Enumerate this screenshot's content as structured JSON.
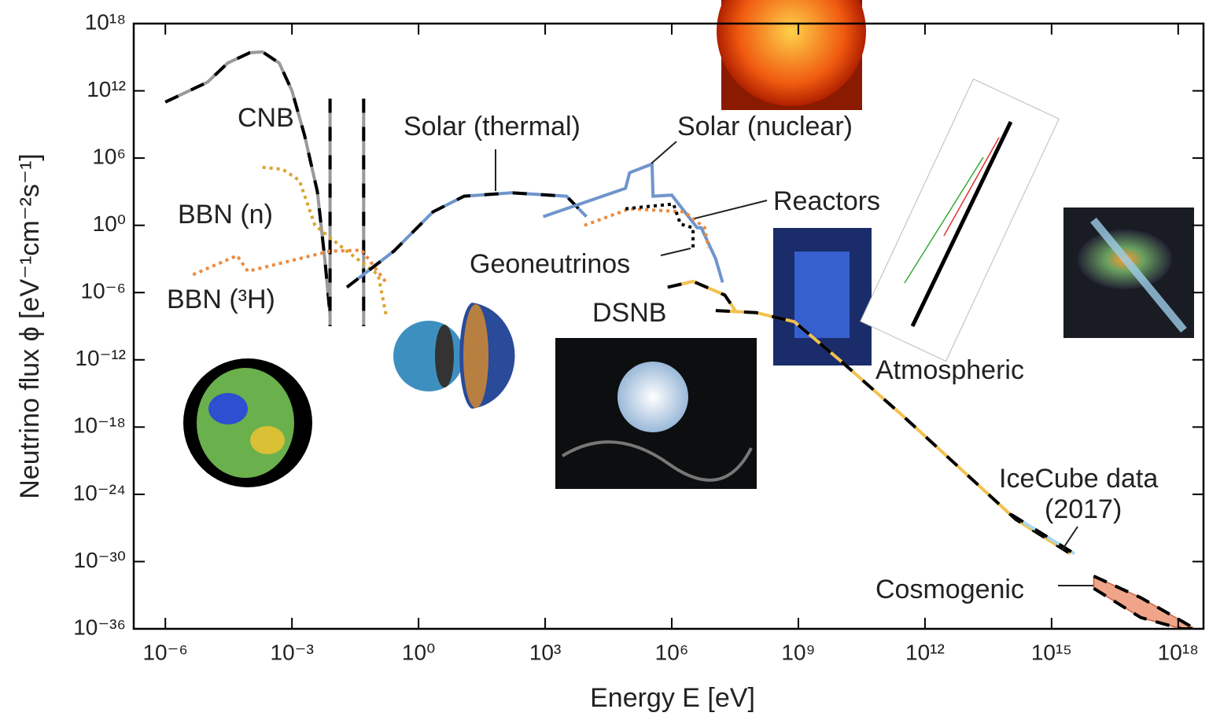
{
  "chart_data": {
    "type": "line",
    "xlabel": "Energy E [eV]",
    "ylabel": "Neutrino flux ϕ [eV⁻¹cm⁻²s⁻¹]",
    "log_x": true,
    "log_y": true,
    "xlim": [
      1.78e-07,
      3.98e+18
    ],
    "ylim": [
      1e-36,
      1e+18
    ],
    "xticks": [
      {
        "value": 1e-06,
        "label": "10⁻⁶"
      },
      {
        "value": 0.001,
        "label": "10⁻³"
      },
      {
        "value": 1,
        "label": "10⁰"
      },
      {
        "value": 1000.0,
        "label": "10³"
      },
      {
        "value": 1000000.0,
        "label": "10⁶"
      },
      {
        "value": 1000000000.0,
        "label": "10⁹"
      },
      {
        "value": 1000000000000.0,
        "label": "10¹²"
      },
      {
        "value": 1000000000000000.0,
        "label": "10¹⁵"
      },
      {
        "value": 1e+18,
        "label": "10¹⁸"
      }
    ],
    "yticks": [
      {
        "value": 1e+18,
        "label": "10¹⁸"
      },
      {
        "value": 1000000000000.0,
        "label": "10¹²"
      },
      {
        "value": 1000000.0,
        "label": "10⁶"
      },
      {
        "value": 1,
        "label": "10⁰"
      },
      {
        "value": 1e-06,
        "label": "10⁻⁶"
      },
      {
        "value": 1e-12,
        "label": "10⁻¹²"
      },
      {
        "value": 1e-18,
        "label": "10⁻¹⁸"
      },
      {
        "value": 1e-24,
        "label": "10⁻²⁴"
      },
      {
        "value": 1e-30,
        "label": "10⁻³⁰"
      },
      {
        "value": 1e-36,
        "label": "10⁻³⁶"
      }
    ],
    "series": [
      {
        "color": "#999999",
        "style": "solid",
        "dash": true,
        "x": [
          1e-06,
          1e-05,
          3e-05,
          0.0001,
          0.0002,
          0.0005,
          0.001,
          0.002,
          0.004,
          0.006,
          0.008
        ],
        "values": [
          100000000000.0,
          6000000000000.0,
          300000000000000.0,
          2500000000000000.0,
          3000000000000000.0,
          300000000000000.0,
          1000000000000.0,
          100000000.0,
          1000.0,
          0.001,
          1e-08
        ]
      },
      {
        "color": "#999999",
        "style": "solid",
        "dash": true,
        "x": [
          0.008,
          0.008
        ],
        "values": [
          200000000000.0,
          1e-09
        ]
      },
      {
        "color": "#999999",
        "style": "solid",
        "dash": true,
        "x": [
          0.05,
          0.05
        ],
        "values": [
          200000000000.0,
          1e-09
        ]
      },
      {
        "color": "#d9a532",
        "style": "dotted",
        "dash": false,
        "x": [
          0.0002,
          0.0006,
          0.0015,
          0.0035,
          0.02,
          0.11,
          0.17
        ],
        "values": [
          150000.0,
          100000.0,
          10000.0,
          1,
          0.005,
          4e-05,
          1e-08
        ]
      },
      {
        "color": "#ee8a3c",
        "style": "dotted",
        "dash": false,
        "x": [
          4.5e-06,
          5e-05,
          9e-05,
          0.008,
          0.045,
          0.17
        ],
        "values": [
          4e-05,
          0.002,
          8e-05,
          0.005,
          0.006,
          8e-06
        ]
      },
      {
        "color": "#6f95cc",
        "style": "solid",
        "dash": true,
        "x": [
          0.02,
          0.26,
          2.2,
          12,
          160,
          3200,
          9500
        ],
        "values": [
          3e-06,
          0.005,
          16,
          400,
          800,
          400,
          6
        ]
      },
      {
        "color": "#6f95cc",
        "style": "solid",
        "dash": false,
        "x": [
          900,
          80000.0,
          100000.0,
          340000.0,
          360000.0,
          1000000.0,
          4000000.0,
          5000000.0,
          11000000.0,
          16000000.0
        ],
        "values": [
          6,
          2000,
          50000.0,
          300000.0,
          400,
          500,
          0.6,
          0.6,
          0.001,
          8e-06
        ]
      },
      {
        "color": "#ee8a3c",
        "style": "dotted",
        "dash": false,
        "x": [
          8500,
          100000.0,
          2000000.0,
          6000000.0,
          7400000.0
        ],
        "values": [
          1,
          30,
          16,
          0.6,
          0.01
        ]
      },
      {
        "color": "#000000",
        "style": "dotted",
        "dash": false,
        "x": [
          80000.0,
          1100000.0,
          1600000.0,
          3200000.0,
          3200000.0
        ],
        "values": [
          30,
          80,
          1.3,
          0.6,
          0.005
        ]
      },
      {
        "color": "#f2c14e",
        "style": "solid",
        "dash": true,
        "x": [
          800000.0,
          3200000.0,
          18000000.0,
          32000000.0
        ],
        "values": [
          3e-06,
          1e-05,
          6e-07,
          2.5e-08
        ]
      },
      {
        "color": "#f2c14e",
        "style": "solid",
        "dash": true,
        "x": [
          11000000.0,
          100000000.0,
          800000000.0,
          11000000000.0,
          320000000000.0,
          140000000000000.0,
          2800000000000000.0
        ],
        "values": [
          2.5e-08,
          1.6e-08,
          2.5e-09,
          6e-13,
          8e-18,
          6e-27,
          5e-30
        ]
      },
      {
        "color": "#a8d8f0",
        "style": "solid",
        "dash": true,
        "x": [
          110000000000000.0,
          3500000000000000.0
        ],
        "values": [
          1.6e-26,
          5e-30
        ]
      },
      {
        "color": "#f0a58a",
        "style": "band",
        "dash": true,
        "x": [
          1e+16,
          1.3e+17,
          1.2e+18,
          2.5e+18
        ],
        "values": [
          5e-32,
          6e-34,
          5e-36,
          1e-36
        ],
        "lower": [
          4e-33,
          1e-35,
          1e-36,
          1e-36
        ]
      }
    ],
    "annotations": [
      "CNB",
      "BBN (n)",
      "BBN (³H)",
      "Solar (thermal)",
      "Solar (nuclear)",
      "Reactors",
      "Geoneutrinos",
      "DSNB",
      "Atmospheric",
      "IceCube data",
      "(2017)",
      "Cosmogenic"
    ]
  }
}
